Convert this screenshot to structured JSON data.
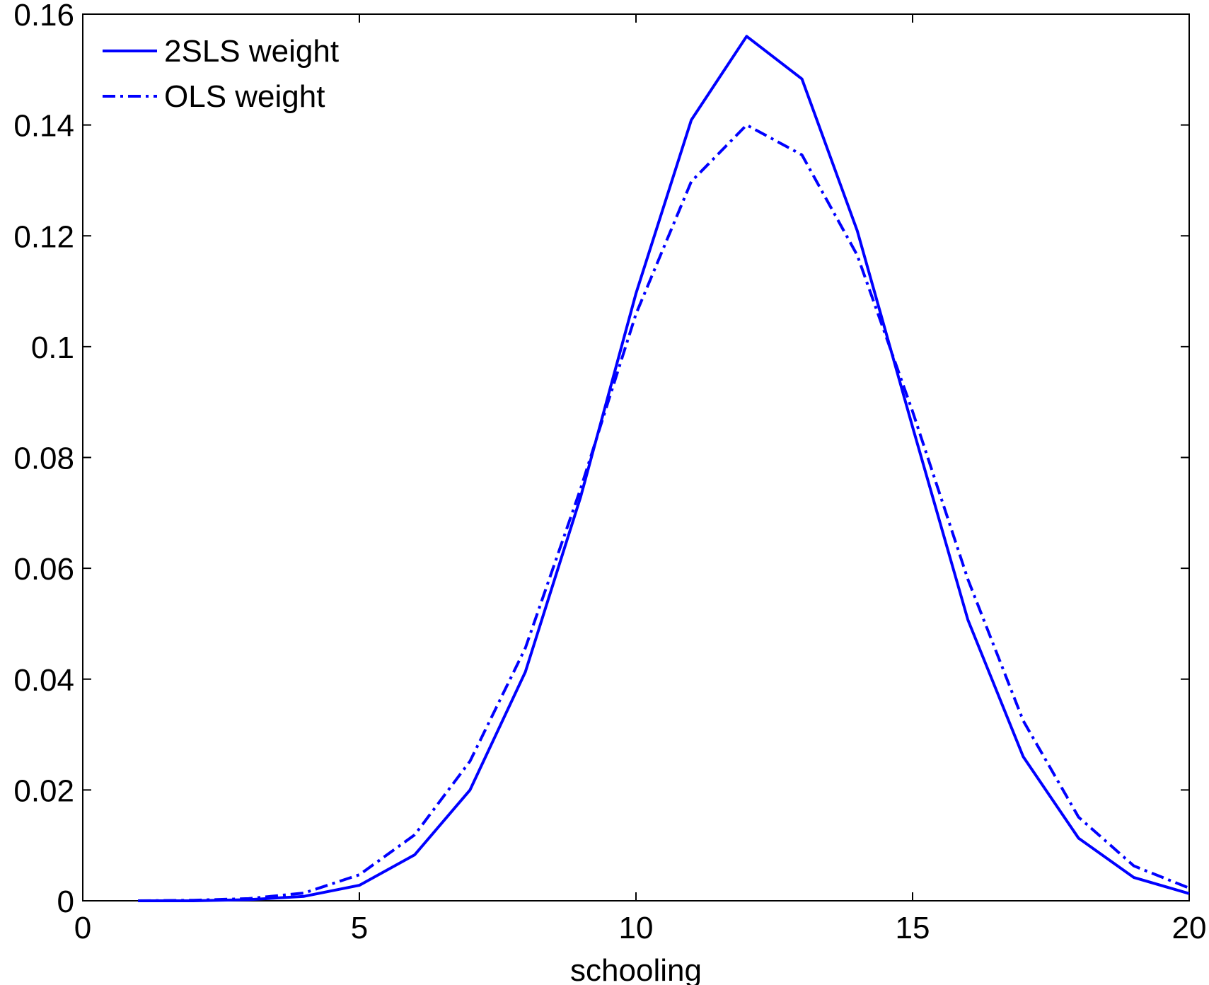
{
  "chart_data": {
    "type": "line",
    "xlabel": "schooling",
    "ylabel": "",
    "xlim": [
      0,
      20
    ],
    "ylim": [
      0,
      0.16
    ],
    "xticks": [
      0,
      5,
      10,
      15,
      20
    ],
    "yticks": [
      0,
      0.02,
      0.04,
      0.06,
      0.08,
      0.1,
      0.12,
      0.14,
      0.16
    ],
    "xtick_labels": [
      "0",
      "5",
      "10",
      "15",
      "20"
    ],
    "ytick_labels": [
      "0",
      "0.02",
      "0.04",
      "0.06",
      "0.08",
      "0.1",
      "0.12",
      "0.14",
      "0.16"
    ],
    "grid": false,
    "legend_position": "top-left",
    "x": [
      1,
      2,
      3,
      4,
      5,
      6,
      7,
      8,
      9,
      10,
      11,
      12,
      13,
      14,
      15,
      16,
      17,
      18,
      19,
      20
    ],
    "series": [
      {
        "name": "2SLS weight",
        "style": "solid",
        "color": "#0000ff",
        "values": [
          0.0,
          0.0,
          0.0002,
          0.0008,
          0.0028,
          0.0083,
          0.02,
          0.0413,
          0.0729,
          0.1096,
          0.1409,
          0.156,
          0.1483,
          0.1209,
          0.0855,
          0.0507,
          0.026,
          0.0113,
          0.0042,
          0.0013
        ]
      },
      {
        "name": "OLS weight",
        "style": "dashdot",
        "color": "#0000ff",
        "values": [
          0.0,
          0.0001,
          0.0004,
          0.0014,
          0.0047,
          0.0119,
          0.0252,
          0.0456,
          0.0744,
          0.1059,
          0.1298,
          0.14,
          0.1346,
          0.1165,
          0.0883,
          0.058,
          0.0325,
          0.0151,
          0.0063,
          0.0023
        ]
      }
    ]
  }
}
